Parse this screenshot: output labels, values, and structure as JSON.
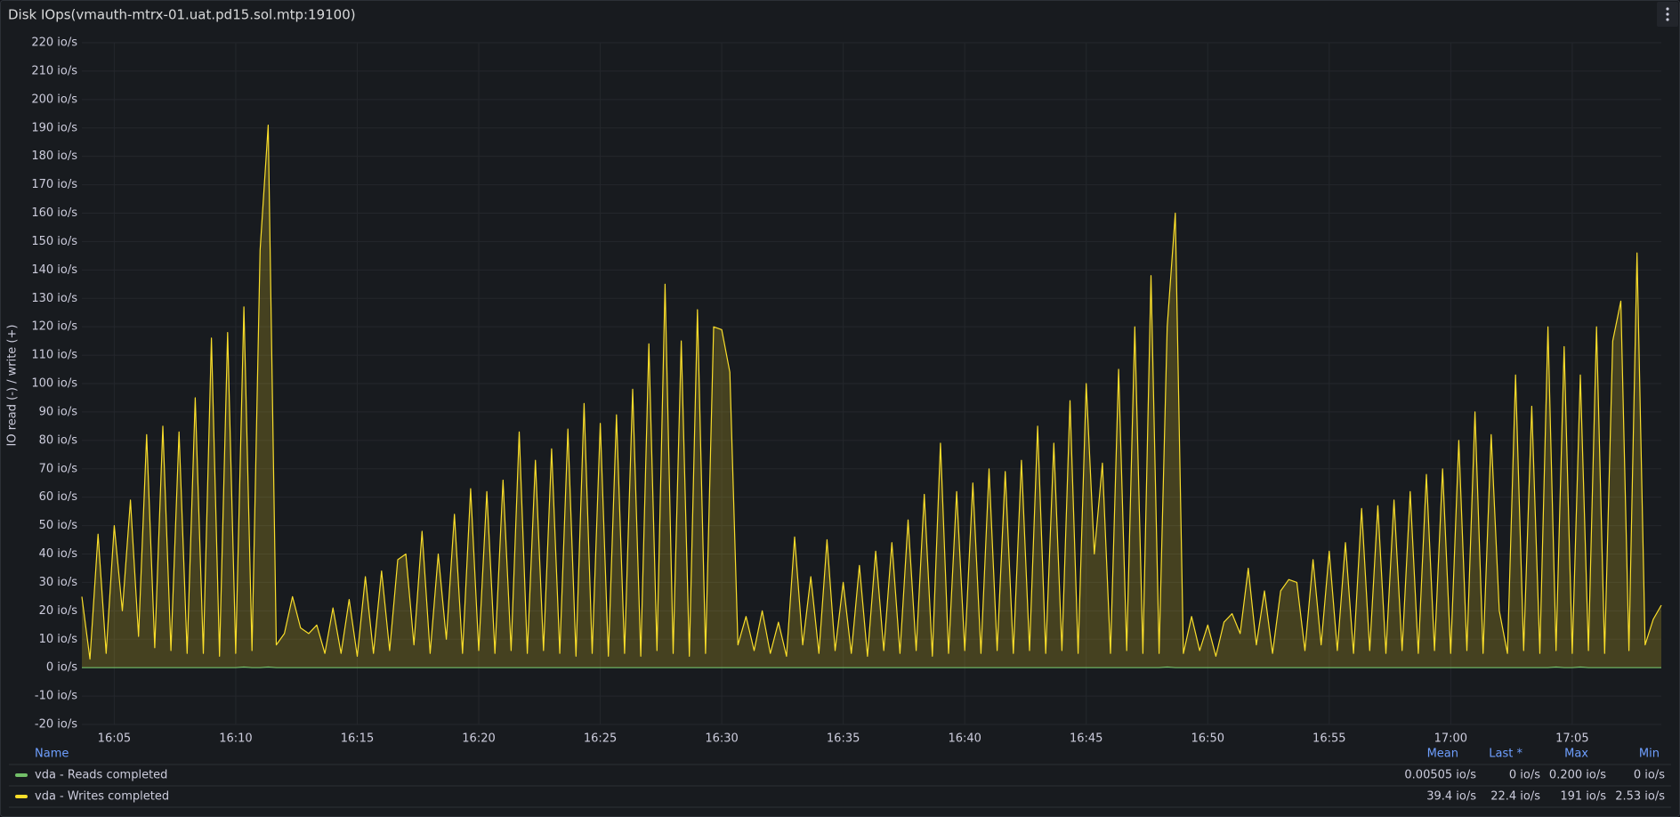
{
  "chart_data": {
    "type": "line",
    "title": "Disk IOps(vmauth-mtrx-01.uat.pd15.sol.mtp:19100)",
    "ylabel": "IO read (-) / write (+)",
    "ylim": [
      -20,
      220
    ],
    "yticks": [
      {
        "value": -20,
        "label": "-20 io/s"
      },
      {
        "value": -10,
        "label": "-10 io/s"
      },
      {
        "value": 0,
        "label": "0 io/s"
      },
      {
        "value": 10,
        "label": "10 io/s"
      },
      {
        "value": 20,
        "label": "20 io/s"
      },
      {
        "value": 30,
        "label": "30 io/s"
      },
      {
        "value": 40,
        "label": "40 io/s"
      },
      {
        "value": 50,
        "label": "50 io/s"
      },
      {
        "value": 60,
        "label": "60 io/s"
      },
      {
        "value": 70,
        "label": "70 io/s"
      },
      {
        "value": 80,
        "label": "80 io/s"
      },
      {
        "value": 90,
        "label": "90 io/s"
      },
      {
        "value": 100,
        "label": "100 io/s"
      },
      {
        "value": 110,
        "label": "110 io/s"
      },
      {
        "value": 120,
        "label": "120 io/s"
      },
      {
        "value": 130,
        "label": "130 io/s"
      },
      {
        "value": 140,
        "label": "140 io/s"
      },
      {
        "value": 150,
        "label": "150 io/s"
      },
      {
        "value": 160,
        "label": "160 io/s"
      },
      {
        "value": 170,
        "label": "170 io/s"
      },
      {
        "value": 180,
        "label": "180 io/s"
      },
      {
        "value": 190,
        "label": "190 io/s"
      },
      {
        "value": 200,
        "label": "200 io/s"
      },
      {
        "value": 210,
        "label": "210 io/s"
      },
      {
        "value": 220,
        "label": "220 io/s"
      }
    ],
    "xlim": [
      "16:03:40",
      "17:08:40"
    ],
    "xticks": [
      "16:05",
      "16:10",
      "16:15",
      "16:20",
      "16:25",
      "16:30",
      "16:35",
      "16:40",
      "16:45",
      "16:50",
      "16:55",
      "17:00",
      "17:05"
    ],
    "grid": true,
    "legend_columns": [
      "Name",
      "Mean",
      "Last *",
      "Max",
      "Min"
    ],
    "x": [
      "16:03:40",
      "16:04:00",
      "16:04:20",
      "16:04:40",
      "16:05:00",
      "16:05:20",
      "16:05:40",
      "16:06:00",
      "16:06:20",
      "16:06:40",
      "16:07:00",
      "16:07:20",
      "16:07:40",
      "16:08:00",
      "16:08:20",
      "16:08:40",
      "16:09:00",
      "16:09:20",
      "16:09:40",
      "16:10:00",
      "16:10:20",
      "16:10:40",
      "16:11:00",
      "16:11:20",
      "16:11:40",
      "16:12:00",
      "16:12:20",
      "16:12:40",
      "16:13:00",
      "16:13:20",
      "16:13:40",
      "16:14:00",
      "16:14:20",
      "16:14:40",
      "16:15:00",
      "16:15:20",
      "16:15:40",
      "16:16:00",
      "16:16:20",
      "16:16:40",
      "16:17:00",
      "16:17:20",
      "16:17:40",
      "16:18:00",
      "16:18:20",
      "16:18:40",
      "16:19:00",
      "16:19:20",
      "16:19:40",
      "16:20:00",
      "16:20:20",
      "16:20:40",
      "16:21:00",
      "16:21:20",
      "16:21:40",
      "16:22:00",
      "16:22:20",
      "16:22:40",
      "16:23:00",
      "16:23:20",
      "16:23:40",
      "16:24:00",
      "16:24:20",
      "16:24:40",
      "16:25:00",
      "16:25:20",
      "16:25:40",
      "16:26:00",
      "16:26:20",
      "16:26:40",
      "16:27:00",
      "16:27:20",
      "16:27:40",
      "16:28:00",
      "16:28:20",
      "16:28:40",
      "16:29:00",
      "16:29:20",
      "16:29:40",
      "16:30:00",
      "16:30:20",
      "16:30:40",
      "16:31:00",
      "16:31:20",
      "16:31:40",
      "16:32:00",
      "16:32:20",
      "16:32:40",
      "16:33:00",
      "16:33:20",
      "16:33:40",
      "16:34:00",
      "16:34:20",
      "16:34:40",
      "16:35:00",
      "16:35:20",
      "16:35:40",
      "16:36:00",
      "16:36:20",
      "16:36:40",
      "16:37:00",
      "16:37:20",
      "16:37:40",
      "16:38:00",
      "16:38:20",
      "16:38:40",
      "16:39:00",
      "16:39:20",
      "16:39:40",
      "16:40:00",
      "16:40:20",
      "16:40:40",
      "16:41:00",
      "16:41:20",
      "16:41:40",
      "16:42:00",
      "16:42:20",
      "16:42:40",
      "16:43:00",
      "16:43:20",
      "16:43:40",
      "16:44:00",
      "16:44:20",
      "16:44:40",
      "16:45:00",
      "16:45:20",
      "16:45:40",
      "16:46:00",
      "16:46:20",
      "16:46:40",
      "16:47:00",
      "16:47:20",
      "16:47:40",
      "16:48:00",
      "16:48:20",
      "16:48:40",
      "16:49:00",
      "16:49:20",
      "16:49:40",
      "16:50:00",
      "16:50:20",
      "16:50:40",
      "16:51:00",
      "16:51:20",
      "16:51:40",
      "16:52:00",
      "16:52:20",
      "16:52:40",
      "16:53:00",
      "16:53:20",
      "16:53:40",
      "16:54:00",
      "16:54:20",
      "16:54:40",
      "16:55:00",
      "16:55:20",
      "16:55:40",
      "16:56:00",
      "16:56:20",
      "16:56:40",
      "16:57:00",
      "16:57:20",
      "16:57:40",
      "16:58:00",
      "16:58:20",
      "16:58:40",
      "16:59:00",
      "16:59:20",
      "16:59:40",
      "17:00:00",
      "17:00:20",
      "17:00:40",
      "17:01:00",
      "17:01:20",
      "17:01:40",
      "17:02:00",
      "17:02:20",
      "17:02:40",
      "17:03:00",
      "17:03:20",
      "17:03:40",
      "17:04:00",
      "17:04:20",
      "17:04:40",
      "17:05:00",
      "17:05:20",
      "17:05:40",
      "17:06:00",
      "17:06:20",
      "17:06:40",
      "17:07:00",
      "17:07:20",
      "17:07:40",
      "17:08:00",
      "17:08:20",
      "17:08:40"
    ],
    "series": [
      {
        "name": "vda - Reads completed",
        "color": "#73bf69",
        "stats": [
          "0.00505 io/s",
          "0 io/s",
          "0.200 io/s",
          "0 io/s"
        ],
        "values": [
          0,
          0,
          0,
          0,
          0,
          0,
          0,
          0,
          0,
          0,
          0,
          0,
          0,
          0,
          0,
          0,
          0,
          0,
          0,
          0,
          0.2,
          0,
          0,
          0.2,
          0,
          0,
          0,
          0,
          0,
          0,
          0,
          0,
          0,
          0,
          0,
          0,
          0,
          0,
          0,
          0,
          0,
          0,
          0,
          0,
          0,
          0,
          0,
          0,
          0,
          0,
          0,
          0,
          0,
          0,
          0,
          0,
          0,
          0,
          0,
          0,
          0,
          0,
          0,
          0,
          0,
          0,
          0,
          0,
          0,
          0,
          0,
          0,
          0,
          0,
          0,
          0,
          0,
          0,
          0,
          0,
          0,
          0,
          0,
          0,
          0,
          0,
          0,
          0,
          0,
          0,
          0,
          0,
          0,
          0,
          0,
          0,
          0,
          0,
          0,
          0,
          0,
          0,
          0,
          0,
          0,
          0,
          0,
          0,
          0,
          0,
          0,
          0,
          0,
          0,
          0,
          0,
          0,
          0,
          0,
          0,
          0,
          0,
          0,
          0,
          0,
          0,
          0,
          0,
          0,
          0,
          0,
          0,
          0,
          0,
          0.2,
          0,
          0,
          0,
          0,
          0,
          0,
          0,
          0,
          0,
          0,
          0,
          0,
          0,
          0,
          0,
          0,
          0,
          0,
          0,
          0,
          0,
          0,
          0,
          0,
          0,
          0,
          0,
          0,
          0,
          0,
          0,
          0,
          0,
          0,
          0,
          0,
          0,
          0,
          0,
          0,
          0,
          0,
          0,
          0,
          0,
          0,
          0,
          0.2,
          0,
          0,
          0.2,
          0,
          0,
          0,
          0,
          0,
          0,
          0,
          0,
          0,
          0
        ]
      },
      {
        "name": "vda - Writes completed",
        "color": "#fade2a",
        "stats": [
          "39.4 io/s",
          "22.4 io/s",
          "191 io/s",
          "2.53 io/s"
        ],
        "values": [
          25,
          3,
          47,
          5,
          50,
          20,
          59,
          11,
          82,
          7,
          85,
          6,
          83,
          5,
          95,
          5,
          116,
          4,
          118,
          5,
          127,
          6,
          147,
          191,
          8,
          12,
          25,
          14,
          12,
          15,
          5,
          21,
          5,
          24,
          4,
          32,
          5,
          34,
          6,
          38,
          40,
          8,
          48,
          5,
          40,
          10,
          54,
          5,
          63,
          6,
          62,
          5,
          66,
          6,
          83,
          5,
          73,
          6,
          77,
          5,
          84,
          4,
          93,
          5,
          86,
          4,
          89,
          5,
          98,
          4,
          114,
          6,
          135,
          5,
          115,
          4,
          126,
          5,
          120,
          119,
          104,
          8,
          18,
          6,
          20,
          5,
          16,
          4,
          46,
          8,
          32,
          5,
          45,
          6,
          30,
          5,
          36,
          4,
          41,
          6,
          44,
          5,
          52,
          6,
          61,
          4,
          79,
          5,
          62,
          6,
          65,
          5,
          70,
          6,
          69,
          5,
          73,
          6,
          85,
          5,
          79,
          6,
          94,
          5,
          100,
          40,
          72,
          5,
          105,
          6,
          120,
          5,
          138,
          5,
          120,
          160,
          5,
          18,
          6,
          15,
          4,
          16,
          19,
          12,
          35,
          8,
          27,
          5,
          27,
          31,
          30,
          6,
          38,
          8,
          41,
          6,
          44,
          5,
          56,
          6,
          57,
          5,
          59,
          6,
          62,
          5,
          68,
          6,
          70,
          5,
          80,
          6,
          90,
          5,
          82,
          20,
          5,
          103,
          6,
          92,
          5,
          120,
          6,
          113,
          5,
          103,
          6,
          120,
          5,
          115,
          129,
          6,
          146,
          8,
          17,
          22
        ]
      }
    ]
  }
}
